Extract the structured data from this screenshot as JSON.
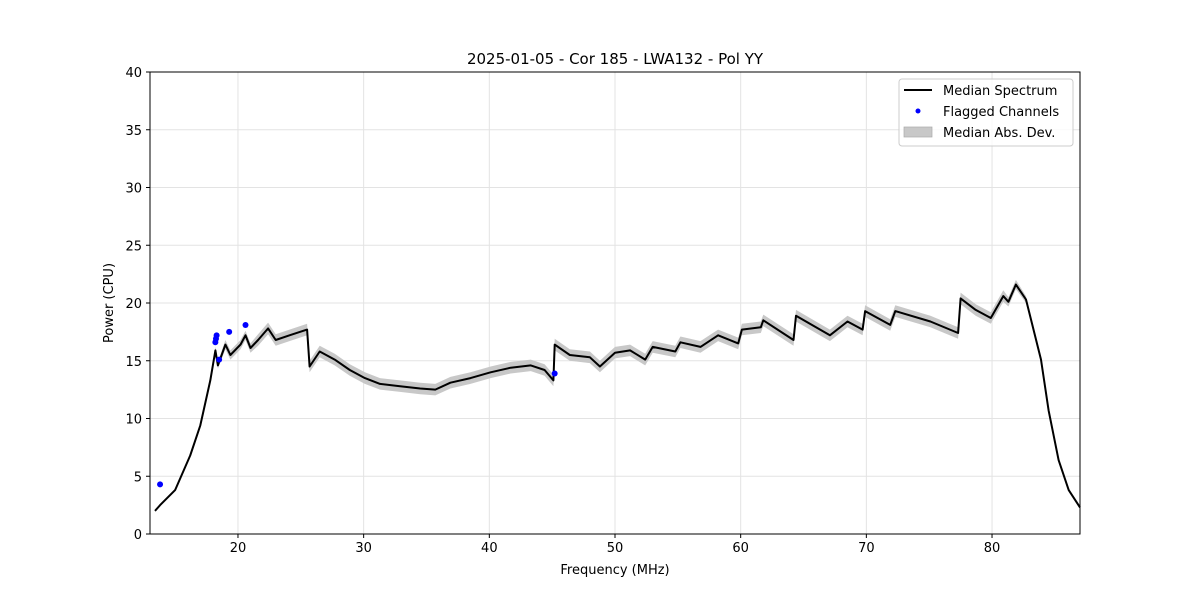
{
  "chart_data": {
    "type": "line",
    "title": "2025-01-05 - Cor 185 - LWA132 - Pol YY",
    "xlabel": "Frequency (MHz)",
    "ylabel": "Power (CPU)",
    "xlim": [
      13,
      87
    ],
    "ylim": [
      0,
      40
    ],
    "xticks": [
      20,
      30,
      40,
      50,
      60,
      70,
      80
    ],
    "yticks": [
      0,
      5,
      10,
      15,
      20,
      25,
      30,
      35,
      40
    ],
    "grid": true,
    "legend_position": "top-right",
    "legend": [
      "Median Spectrum",
      "Flagged Channels",
      "Median Abs. Dev."
    ],
    "colors": {
      "line": "#000000",
      "flagged": "#0000ff",
      "band": "#c8c8c8"
    },
    "series": [
      {
        "name": "Median Spectrum",
        "x": [
          13.4,
          13.8,
          15.0,
          16.2,
          17.0,
          17.8,
          18.2,
          18.4,
          19.0,
          19.4,
          20.2,
          20.6,
          21.0,
          21.6,
          22.4,
          23.0,
          24.1,
          25.5,
          25.7,
          26.5,
          27.7,
          28.9,
          30.1,
          31.3,
          32.9,
          34.5,
          35.7,
          36.9,
          38.5,
          40.1,
          41.7,
          43.3,
          44.4,
          45.1,
          45.2,
          46.4,
          48.0,
          48.8,
          50.0,
          51.2,
          52.4,
          53.0,
          54.8,
          55.2,
          56.8,
          58.2,
          59.8,
          60.1,
          61.6,
          61.8,
          64.2,
          64.4,
          67.1,
          68.5,
          69.7,
          69.9,
          71.9,
          72.3,
          75.1,
          77.3,
          77.5,
          78.7,
          79.9,
          80.9,
          81.3,
          81.9,
          82.7,
          83.9,
          84.5,
          85.3,
          86.1,
          87.0
        ],
        "y": [
          2.0,
          2.5,
          3.8,
          6.8,
          9.4,
          13.3,
          15.9,
          14.6,
          16.4,
          15.5,
          16.4,
          17.2,
          16.1,
          16.8,
          17.8,
          16.8,
          17.2,
          17.7,
          14.5,
          15.8,
          15.1,
          14.2,
          13.5,
          13.0,
          12.8,
          12.6,
          12.5,
          13.1,
          13.5,
          14.0,
          14.4,
          14.6,
          14.2,
          13.3,
          16.4,
          15.5,
          15.3,
          14.5,
          15.7,
          15.9,
          15.1,
          16.2,
          15.8,
          16.6,
          16.2,
          17.2,
          16.5,
          17.7,
          17.9,
          18.5,
          16.8,
          18.9,
          17.2,
          18.4,
          17.7,
          19.3,
          18.1,
          19.3,
          18.4,
          17.4,
          20.4,
          19.4,
          18.7,
          20.6,
          20.1,
          21.6,
          20.3,
          15.1,
          10.7,
          6.4,
          3.8,
          2.3
        ],
        "mad": [
          0.1,
          0.1,
          0.1,
          0.1,
          0.1,
          0.2,
          0.3,
          0.3,
          0.4,
          0.4,
          0.4,
          0.4,
          0.4,
          0.5,
          0.5,
          0.5,
          0.5,
          0.5,
          0.5,
          0.5,
          0.5,
          0.5,
          0.5,
          0.5,
          0.5,
          0.5,
          0.5,
          0.5,
          0.5,
          0.5,
          0.5,
          0.5,
          0.5,
          0.5,
          0.5,
          0.5,
          0.5,
          0.5,
          0.5,
          0.5,
          0.5,
          0.5,
          0.5,
          0.5,
          0.5,
          0.5,
          0.5,
          0.5,
          0.5,
          0.5,
          0.5,
          0.5,
          0.5,
          0.5,
          0.5,
          0.5,
          0.5,
          0.5,
          0.5,
          0.5,
          0.5,
          0.5,
          0.5,
          0.5,
          0.4,
          0.4,
          0.3,
          0.2,
          0.1,
          0.1,
          0.1,
          0.1
        ]
      },
      {
        "name": "Flagged Channels",
        "x": [
          13.8,
          18.2,
          18.25,
          18.3,
          18.5,
          19.3,
          20.6,
          45.2
        ],
        "y": [
          4.3,
          16.6,
          16.9,
          17.2,
          15.1,
          17.5,
          18.1,
          13.9
        ]
      }
    ]
  }
}
